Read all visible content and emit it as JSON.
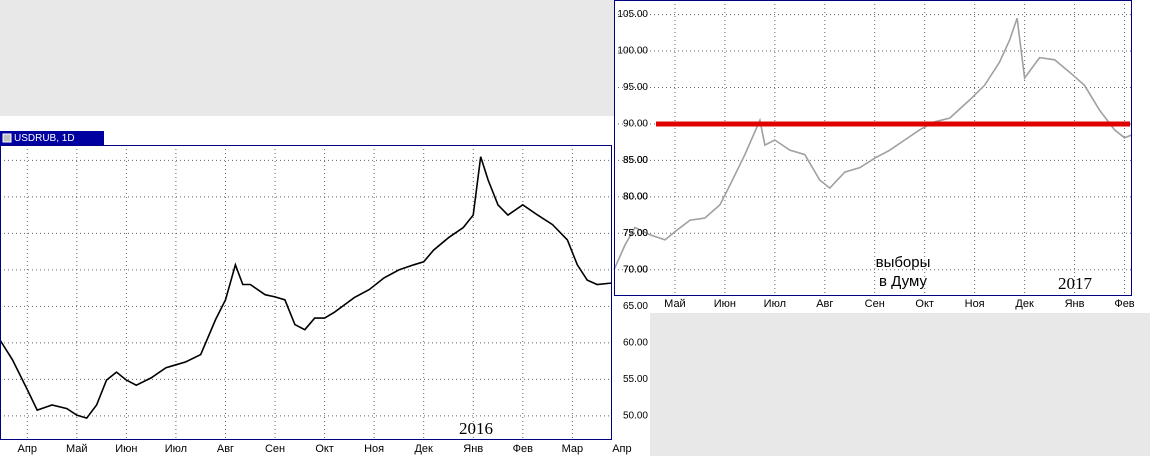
{
  "chart_data": [
    {
      "type": "line",
      "window_title": "USDRUB, 1D",
      "annotation": "2016",
      "xlim": [
        -0.55,
        11.8
      ],
      "ylim": [
        46.7,
        87.1
      ],
      "xticks": [
        {
          "value": 0,
          "label": "Апр"
        },
        {
          "value": 1,
          "label": "Май"
        },
        {
          "value": 2,
          "label": "Июн"
        },
        {
          "value": 3,
          "label": "Июл"
        },
        {
          "value": 4,
          "label": "Авг"
        },
        {
          "value": 5,
          "label": "Сен"
        },
        {
          "value": 6,
          "label": "Окт"
        },
        {
          "value": 7,
          "label": "Ноя"
        },
        {
          "value": 8,
          "label": "Дек"
        },
        {
          "value": 9,
          "label": "Янв"
        },
        {
          "value": 10,
          "label": "Фев"
        },
        {
          "value": 11,
          "label": "Мар"
        },
        {
          "value": 12,
          "label": "Апр"
        }
      ],
      "yticks": [
        {
          "value": 50,
          "label": "50.00"
        },
        {
          "value": 55,
          "label": "55.00"
        },
        {
          "value": 60,
          "label": "60.00"
        },
        {
          "value": 65,
          "label": "65.00"
        },
        {
          "value": 70,
          "label": "70.00"
        },
        {
          "value": 75,
          "label": "75.00"
        },
        {
          "value": 80,
          "label": "80.00"
        },
        {
          "value": 85,
          "label": "85.00"
        }
      ],
      "grid": true,
      "series": [
        {
          "color": "#000000",
          "x": [
            -0.55,
            -0.3,
            0,
            0.2,
            0.5,
            0.8,
            1.0,
            1.2,
            1.4,
            1.6,
            1.8,
            2.0,
            2.2,
            2.5,
            2.8,
            3.0,
            3.2,
            3.5,
            3.8,
            4.0,
            4.2,
            4.35,
            4.5,
            4.8,
            5.0,
            5.2,
            5.4,
            5.6,
            5.8,
            6.0,
            6.2,
            6.4,
            6.6,
            6.9,
            7.2,
            7.5,
            7.8,
            8.0,
            8.2,
            8.5,
            8.8,
            9.0,
            9.15,
            9.3,
            9.5,
            9.7,
            10.0,
            10.3,
            10.6,
            10.9,
            11.1,
            11.3,
            11.5,
            11.8
          ],
          "values": [
            60.4,
            57.7,
            53.6,
            50.8,
            51.5,
            51,
            50.1,
            49.7,
            51.5,
            54.9,
            56,
            54.9,
            54.2,
            55.2,
            56.6,
            57,
            57.4,
            58.4,
            63.2,
            65.9,
            70.7,
            68,
            68,
            66.6,
            66.3,
            65.9,
            62.5,
            61.8,
            63.4,
            63.4,
            64.2,
            65.2,
            66.2,
            67.3,
            68.9,
            70,
            70.7,
            71.1,
            72.7,
            74.4,
            75.8,
            77.5,
            85.5,
            82.3,
            78.9,
            77.5,
            78.9,
            77.5,
            76.2,
            74.1,
            70.7,
            68.6,
            68,
            68.2
          ]
        }
      ]
    },
    {
      "type": "line",
      "annotation": "2017",
      "note_lines": [
        "выборы",
        "в Думу"
      ],
      "xlim": [
        -0.22,
        10.15
      ],
      "ylim": [
        66.4,
        107.0
      ],
      "xticks": [
        {
          "value": 1,
          "label": "Май"
        },
        {
          "value": 2,
          "label": "Июн"
        },
        {
          "value": 3,
          "label": "Июл"
        },
        {
          "value": 4,
          "label": "Авг"
        },
        {
          "value": 5,
          "label": "Сен"
        },
        {
          "value": 6,
          "label": "Окт"
        },
        {
          "value": 7,
          "label": "Ноя"
        },
        {
          "value": 8,
          "label": "Дек"
        },
        {
          "value": 9,
          "label": "Янв"
        },
        {
          "value": 10,
          "label": "Фев"
        }
      ],
      "yticks": [
        {
          "value": 70,
          "label": "70.00"
        },
        {
          "value": 75,
          "label": "75.00"
        },
        {
          "value": 80,
          "label": "80.00"
        },
        {
          "value": 85,
          "label": "85.00"
        },
        {
          "value": 90,
          "label": "90.00"
        },
        {
          "value": 95,
          "label": "95.00"
        },
        {
          "value": 100,
          "label": "100.00"
        },
        {
          "value": 105,
          "label": "105.00"
        }
      ],
      "grid": true,
      "reference_line": {
        "value": 90,
        "color": "#e00000"
      },
      "series": [
        {
          "color": "#a0a0a0",
          "x": [
            -0.22,
            0,
            0.2,
            0.5,
            0.8,
            1.0,
            1.3,
            1.6,
            1.9,
            2.1,
            2.4,
            2.7,
            2.8,
            3.0,
            3.3,
            3.6,
            3.9,
            4.1,
            4.4,
            4.7,
            5.0,
            5.3,
            5.6,
            5.9,
            6.2,
            6.5,
            6.9,
            7.2,
            7.5,
            7.7,
            7.85,
            8.0,
            8.3,
            8.6,
            8.9,
            9.2,
            9.5,
            9.8,
            10.0,
            10.15
          ],
          "values": [
            70,
            73.4,
            75.8,
            74.8,
            74.1,
            75.2,
            76.8,
            77.1,
            78.9,
            81.6,
            85.8,
            90.5,
            87.1,
            87.8,
            86.4,
            85.8,
            82.3,
            81.2,
            83.4,
            84,
            85.3,
            86.4,
            87.8,
            89.2,
            90.3,
            90.8,
            93.3,
            95.3,
            98.5,
            101.5,
            104.5,
            96.3,
            99.1,
            98.8,
            97.1,
            95.3,
            91.9,
            89.2,
            88.1,
            88.5
          ]
        }
      ]
    }
  ]
}
